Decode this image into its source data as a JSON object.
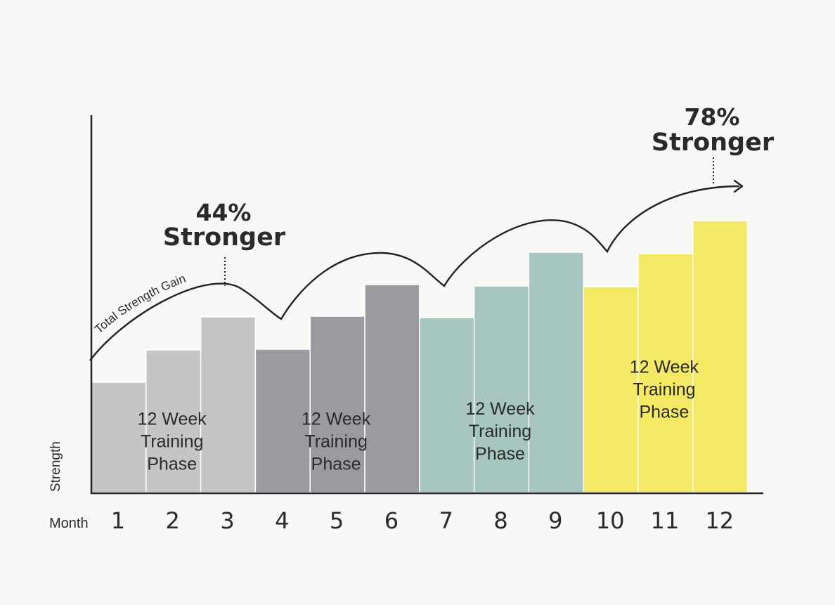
{
  "chart_data": {
    "type": "bar",
    "xlabel": "Month",
    "ylabel": "Strength",
    "categories": [
      "1",
      "2",
      "3",
      "4",
      "5",
      "6",
      "7",
      "8",
      "9",
      "10",
      "11",
      "12"
    ],
    "values": [
      157,
      203,
      250,
      204,
      251,
      296,
      249,
      294,
      342,
      293,
      340,
      387
    ],
    "ylim": [
      0,
      540
    ],
    "phases": [
      {
        "label": [
          "12 Week",
          "Training",
          "Phase"
        ],
        "months": [
          1,
          3
        ],
        "color": "#c4c5c7"
      },
      {
        "label": [
          "12 Week",
          "Training",
          "Phase"
        ],
        "months": [
          4,
          6
        ],
        "color": "#9a9b9f"
      },
      {
        "label": [
          "12 Week",
          "Training",
          "Phase"
        ],
        "months": [
          7,
          9
        ],
        "color": "#a6c6bf"
      },
      {
        "label": [
          "12 Week",
          "Training",
          "Phase"
        ],
        "months": [
          10,
          12
        ],
        "color": "#f4e964"
      }
    ],
    "trend_curve_label": "Total Strength Gain",
    "annotations": [
      {
        "lines": [
          "44%",
          "Stronger"
        ]
      },
      {
        "lines": [
          "78%",
          "Stronger"
        ]
      }
    ],
    "colors": {
      "axis": "#222222",
      "text": "#2a2a2a",
      "background": "#f8f8f7",
      "bar_divider": "#ffffff"
    }
  }
}
